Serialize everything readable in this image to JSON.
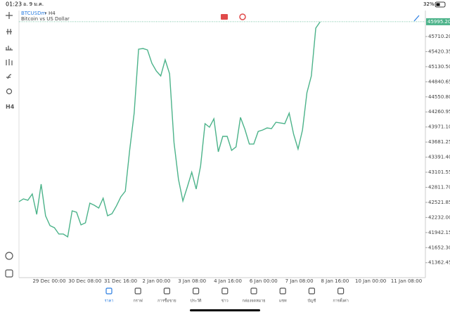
{
  "status_bar": {
    "time": "01:23",
    "date": "อ. 9 ม.ค.",
    "battery": "32%"
  },
  "toolbar": {
    "timeframe": "H4"
  },
  "chart_data": {
    "type": "line",
    "symbol": "BTCUSDm",
    "timeframe_label": "H4",
    "description": "Bitcoin vs US Dollar",
    "color": "#4cb38a",
    "current_price": {
      "value": 45995.2,
      "label": "45995.20"
    },
    "ylim": [
      41075,
      46210
    ],
    "yticks": [
      {
        "value": 45710.2,
        "label": "45710.20"
      },
      {
        "value": 45420.35,
        "label": "45420.35"
      },
      {
        "value": 45130.5,
        "label": "45130.50"
      },
      {
        "value": 44840.65,
        "label": "44840.65"
      },
      {
        "value": 44550.8,
        "label": "44550.80"
      },
      {
        "value": 44260.95,
        "label": "44260.95"
      },
      {
        "value": 43971.1,
        "label": "43971.10"
      },
      {
        "value": 43681.25,
        "label": "43681.25"
      },
      {
        "value": 43391.4,
        "label": "43391.40"
      },
      {
        "value": 43101.55,
        "label": "43101.55"
      },
      {
        "value": 42811.7,
        "label": "42811.70"
      },
      {
        "value": 42521.85,
        "label": "42521.85"
      },
      {
        "value": 42232,
        "label": "42232.00"
      },
      {
        "value": 41942.15,
        "label": "41942.15"
      },
      {
        "value": 41652.3,
        "label": "41652.30"
      },
      {
        "value": 41362.45,
        "label": "41362.45"
      }
    ],
    "x_labels": [
      "29 Dec 00:00",
      "30 Dec 08:00",
      "31 Dec 16:00",
      "2 Jan 00:00",
      "3 Jan 08:00",
      "4 Jan 16:00",
      "6 Jan 00:00",
      "7 Jan 08:00",
      "8 Jan 16:00",
      "10 Jan 00:00",
      "11 Jan 08:00"
    ],
    "values": [
      42535,
      42589,
      42562,
      42683,
      42291,
      42872,
      42264,
      42075,
      42035,
      41913,
      41913,
      41859,
      42359,
      42332,
      42089,
      42129,
      42508,
      42467,
      42413,
      42602,
      42264,
      42305,
      42454,
      42629,
      42737,
      43535,
      44237,
      45467,
      45480,
      45453,
      45197,
      45048,
      44953,
      45264,
      44994,
      43670,
      42967,
      42548,
      42818,
      43102,
      42778,
      43224,
      44035,
      43967,
      44129,
      43494,
      43791,
      43791,
      43521,
      43589,
      44156,
      43926,
      43643,
      43643,
      43886,
      43913,
      43953,
      43940,
      44062,
      44048,
      44035,
      44237,
      43832,
      43548,
      43913,
      44629,
      44953,
      45872,
      45995
    ]
  },
  "nav": [
    "ราคา",
    "กราฟ",
    "การซื้อขาย",
    "ประวัติ",
    "ข่าว",
    "กล่องจดหมาย",
    "แชท",
    "บัญชี",
    "การตั้งค่า"
  ]
}
